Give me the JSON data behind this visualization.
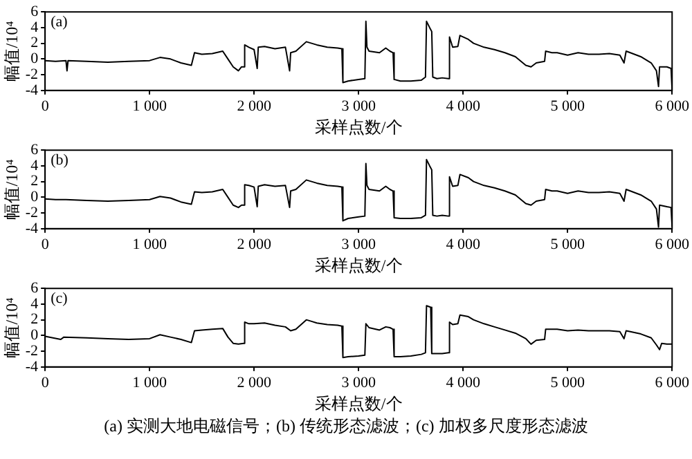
{
  "chart_data": [
    {
      "type": "line",
      "xlabel": "采样点数/个",
      "ylabel": "幅值/10⁴",
      "annotations": [
        "(a)"
      ],
      "xlim": [
        0,
        6000
      ],
      "ylim": [
        -4,
        6
      ],
      "xticks": [
        {
          "value": 0,
          "label": "0"
        },
        {
          "value": 1000,
          "label": "1 000"
        },
        {
          "value": 2000,
          "label": "2 000"
        },
        {
          "value": 3000,
          "label": "3 000"
        },
        {
          "value": 4000,
          "label": "4 000"
        },
        {
          "value": 5000,
          "label": "5 000"
        },
        {
          "value": 6000,
          "label": "6 000"
        }
      ],
      "yticks": [
        -4,
        -2,
        0,
        2,
        4,
        6
      ],
      "grid": false,
      "legend": false,
      "marker": "none",
      "line_style": "solid",
      "series": [
        {
          "color": "#000000",
          "x": [
            0,
            100,
            200,
            210,
            220,
            400,
            600,
            800,
            1000,
            1100,
            1200,
            1300,
            1400,
            1430,
            1500,
            1600,
            1700,
            1750,
            1800,
            1850,
            1880,
            1900,
            1910,
            1950,
            2000,
            2030,
            2040,
            2100,
            2200,
            2300,
            2340,
            2350,
            2400,
            2500,
            2550,
            2600,
            2700,
            2800,
            2840,
            2850,
            2900,
            3000,
            3060,
            3070,
            3080,
            3100,
            3200,
            3260,
            3300,
            3330,
            3340,
            3400,
            3500,
            3600,
            3640,
            3650,
            3680,
            3700,
            3710,
            3750,
            3800,
            3860,
            3870,
            3900,
            3950,
            3970,
            4050,
            4100,
            4200,
            4300,
            4400,
            4500,
            4600,
            4650,
            4700,
            4780,
            4790,
            4850,
            4900,
            5000,
            5100,
            5200,
            5300,
            5400,
            5500,
            5540,
            5560,
            5600,
            5700,
            5800,
            5850,
            5870,
            5880,
            5950,
            5990,
            6000
          ],
          "values": [
            -0.2,
            -0.3,
            -0.2,
            -1.5,
            -0.2,
            -0.3,
            -0.4,
            -0.3,
            -0.2,
            0.2,
            0,
            -0.5,
            -0.8,
            0.8,
            0.6,
            0.7,
            1.0,
            0,
            -1,
            -1.5,
            -1,
            -1,
            1.8,
            1.5,
            1.2,
            -1.2,
            1.5,
            1.6,
            1.3,
            1.5,
            -1.5,
            0.8,
            1.0,
            2.2,
            2.0,
            1.8,
            1.5,
            1.4,
            1.3,
            -3,
            -2.8,
            -2.6,
            -2.5,
            4.8,
            1.5,
            1.0,
            0.8,
            1.4,
            1.0,
            0.8,
            -2.6,
            -2.8,
            -2.8,
            -2.7,
            -2.3,
            4.8,
            4.0,
            3.5,
            -2.3,
            -2.5,
            -2.4,
            -2.5,
            2.8,
            1.5,
            1.6,
            3.0,
            2.5,
            2.0,
            1.5,
            1.2,
            0.8,
            0.3,
            -0.8,
            -1.0,
            -0.5,
            -0.3,
            1.0,
            0.8,
            0.8,
            0.5,
            0.8,
            0.6,
            0.6,
            0.7,
            0.5,
            -0.5,
            1.0,
            0.8,
            0.3,
            -0.5,
            -1.5,
            -3.5,
            -1.0,
            -1.0,
            -1.2,
            -4
          ]
        }
      ]
    },
    {
      "type": "line",
      "xlabel": "采样点数/个",
      "ylabel": "幅值/10⁴",
      "annotations": [
        "(b)"
      ],
      "xlim": [
        0,
        6000
      ],
      "ylim": [
        -4,
        6
      ],
      "xticks": [
        {
          "value": 0,
          "label": "0"
        },
        {
          "value": 1000,
          "label": "1 000"
        },
        {
          "value": 2000,
          "label": "2 000"
        },
        {
          "value": 3000,
          "label": "3 000"
        },
        {
          "value": 4000,
          "label": "4 000"
        },
        {
          "value": 5000,
          "label": "5 000"
        },
        {
          "value": 6000,
          "label": "6 000"
        }
      ],
      "yticks": [
        -4,
        -2,
        0,
        2,
        4,
        6
      ],
      "grid": false,
      "legend": false,
      "marker": "none",
      "line_style": "solid",
      "series": [
        {
          "color": "#000000",
          "x": [
            0,
            100,
            200,
            400,
            600,
            800,
            1000,
            1100,
            1200,
            1300,
            1400,
            1430,
            1500,
            1600,
            1700,
            1750,
            1800,
            1850,
            1880,
            1900,
            1910,
            1950,
            2000,
            2030,
            2040,
            2100,
            2200,
            2300,
            2340,
            2350,
            2400,
            2500,
            2550,
            2600,
            2700,
            2800,
            2840,
            2850,
            2900,
            3000,
            3060,
            3070,
            3080,
            3100,
            3200,
            3260,
            3300,
            3330,
            3340,
            3400,
            3500,
            3600,
            3640,
            3650,
            3680,
            3700,
            3710,
            3750,
            3800,
            3860,
            3870,
            3900,
            3950,
            3970,
            4050,
            4100,
            4200,
            4300,
            4400,
            4500,
            4600,
            4650,
            4700,
            4780,
            4790,
            4850,
            4900,
            5000,
            5100,
            5200,
            5300,
            5400,
            5500,
            5540,
            5560,
            5600,
            5700,
            5800,
            5850,
            5870,
            5880,
            5950,
            5990,
            6000
          ],
          "values": [
            -0.2,
            -0.3,
            -0.3,
            -0.4,
            -0.5,
            -0.4,
            -0.3,
            0.1,
            -0.1,
            -0.6,
            -0.9,
            0.7,
            0.6,
            0.7,
            1.0,
            0,
            -1,
            -1.3,
            -1,
            -1,
            1.6,
            1.5,
            1.3,
            -1.2,
            1.4,
            1.6,
            1.4,
            1.5,
            -1.3,
            0.8,
            1.0,
            2.2,
            2.0,
            1.8,
            1.5,
            1.4,
            1.3,
            -3,
            -2.7,
            -2.5,
            -2.4,
            4.3,
            1.5,
            1.0,
            0.8,
            1.4,
            1.0,
            0.8,
            -2.6,
            -2.7,
            -2.7,
            -2.6,
            -2.3,
            4.8,
            4.0,
            3.5,
            -2.3,
            -2.4,
            -2.3,
            -2.4,
            2.6,
            1.4,
            1.5,
            2.9,
            2.5,
            2.0,
            1.5,
            1.2,
            0.8,
            0.3,
            -0.8,
            -1.0,
            -0.5,
            -0.3,
            1.0,
            0.8,
            0.8,
            0.5,
            0.8,
            0.6,
            0.6,
            0.7,
            0.5,
            -0.5,
            1.0,
            0.8,
            0.3,
            -0.5,
            -1.5,
            -3.8,
            -1.0,
            -1.2,
            -1.3,
            -3.8
          ]
        }
      ]
    },
    {
      "type": "line",
      "xlabel": "采样点数/个",
      "ylabel": "幅值/10⁴",
      "annotations": [
        "(c)",
        "(a) 实测大地电磁信号；(b) 传统形态滤波；(c) 加权多尺度形态滤波"
      ],
      "xlim": [
        0,
        6000
      ],
      "ylim": [
        -4,
        6
      ],
      "xticks": [
        {
          "value": 0,
          "label": "0"
        },
        {
          "value": 1000,
          "label": "1 000"
        },
        {
          "value": 2000,
          "label": "2 000"
        },
        {
          "value": 3000,
          "label": "3 000"
        },
        {
          "value": 4000,
          "label": "4 000"
        },
        {
          "value": 5000,
          "label": "5 000"
        },
        {
          "value": 6000,
          "label": "6 000"
        }
      ],
      "yticks": [
        -4,
        -2,
        0,
        2,
        4,
        6
      ],
      "grid": false,
      "legend": false,
      "marker": "none",
      "line_style": "solid",
      "series": [
        {
          "color": "#000000",
          "x": [
            0,
            150,
            180,
            400,
            600,
            800,
            1000,
            1100,
            1200,
            1300,
            1400,
            1430,
            1500,
            1600,
            1700,
            1750,
            1800,
            1850,
            1900,
            1910,
            1950,
            2000,
            2100,
            2200,
            2300,
            2350,
            2400,
            2500,
            2550,
            2600,
            2700,
            2800,
            2840,
            2850,
            2900,
            3000,
            3060,
            3070,
            3100,
            3200,
            3260,
            3300,
            3330,
            3340,
            3400,
            3500,
            3600,
            3640,
            3650,
            3690,
            3700,
            3710,
            3750,
            3800,
            3860,
            3870,
            3900,
            3950,
            3970,
            4050,
            4100,
            4200,
            4300,
            4400,
            4500,
            4600,
            4650,
            4700,
            4780,
            4790,
            4850,
            4900,
            5000,
            5100,
            5200,
            5300,
            5400,
            5500,
            5540,
            5560,
            5600,
            5700,
            5800,
            5850,
            5880,
            5900,
            5950,
            6000
          ],
          "values": [
            -0.1,
            -0.5,
            -0.2,
            -0.3,
            -0.4,
            -0.5,
            -0.4,
            0.1,
            -0.2,
            -0.5,
            -0.9,
            0.6,
            0.7,
            0.8,
            0.9,
            -0.2,
            -1,
            -1.1,
            -1,
            1.7,
            1.5,
            1.5,
            1.6,
            1.3,
            1.1,
            0.6,
            0.8,
            2.0,
            1.8,
            1.6,
            1.4,
            1.3,
            1.2,
            -2.8,
            -2.7,
            -2.6,
            -2.5,
            1.5,
            1.0,
            0.7,
            1.1,
            1.0,
            0.8,
            -2.7,
            -2.7,
            -2.6,
            -2.4,
            -2.2,
            3.8,
            3.6,
            -2.3,
            -2.3,
            -2.3,
            -2.3,
            -2.2,
            1.7,
            1.4,
            1.5,
            2.6,
            2.4,
            2.0,
            1.5,
            1.1,
            0.7,
            0.3,
            -0.4,
            -1.1,
            -0.6,
            -0.5,
            0.8,
            0.8,
            0.8,
            0.6,
            0.7,
            0.6,
            0.6,
            0.6,
            0.5,
            -0.4,
            0.6,
            0.5,
            0.2,
            -0.3,
            -1.2,
            -1.8,
            -1.0,
            -1.1,
            -1.1
          ]
        }
      ]
    }
  ]
}
